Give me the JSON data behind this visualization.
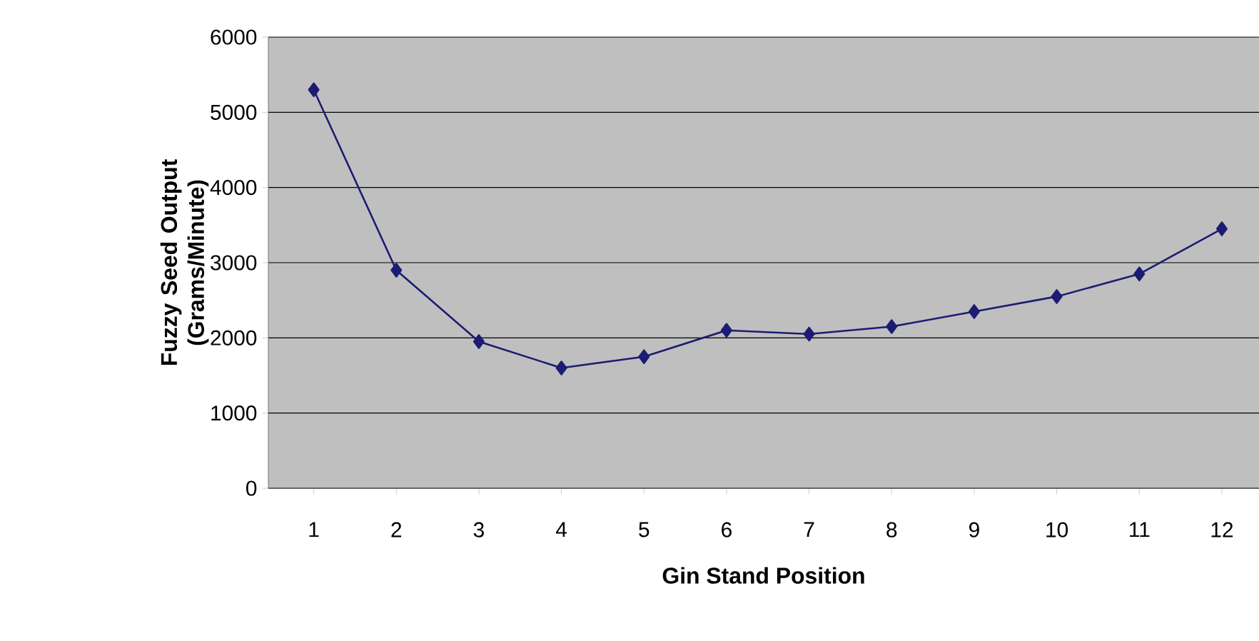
{
  "chart_data": {
    "type": "line",
    "xlabel": "Gin Stand Position",
    "ylabel": "Fuzzy Seed Output (Grams/Minute)",
    "categories": [
      "1",
      "2",
      "3",
      "4",
      "5",
      "6",
      "7",
      "8",
      "9",
      "10",
      "11",
      "12"
    ],
    "values": [
      5300,
      2900,
      1950,
      1600,
      1750,
      2100,
      2050,
      2150,
      2350,
      2550,
      2850,
      3450
    ],
    "color": "#1c1c73",
    "ylim": [
      0,
      6000
    ],
    "yticks": [
      0,
      1000,
      2000,
      3000,
      4000,
      5000,
      6000
    ],
    "grid": "y",
    "marker": "diamond"
  }
}
